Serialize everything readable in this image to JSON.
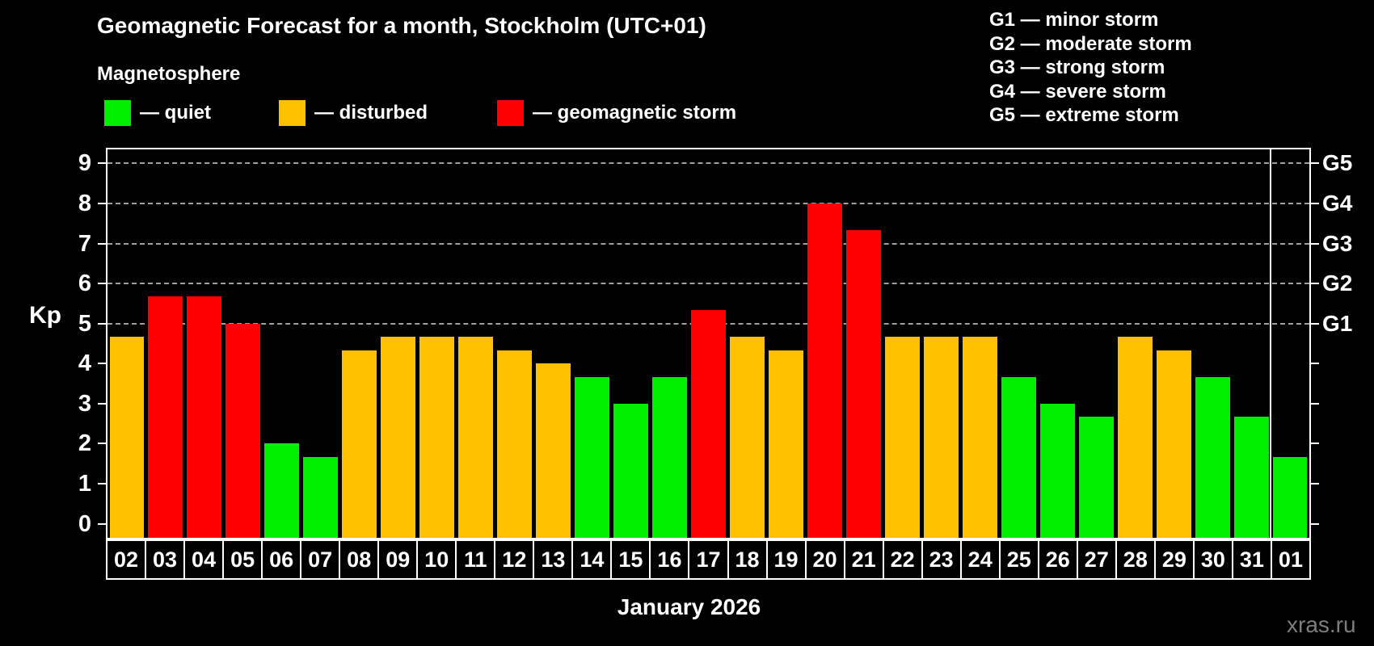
{
  "title": "Geomagnetic Forecast for a month, Stockholm (UTC+01)",
  "subtitle": "Magnetosphere",
  "legend": [
    {
      "key": "quiet",
      "label": "— quiet",
      "color": "#00ee00"
    },
    {
      "key": "disturbed",
      "label": "— disturbed",
      "color": "#ffc000"
    },
    {
      "key": "storm",
      "label": "— geomagnetic storm",
      "color": "#ff0000"
    }
  ],
  "g_legend": [
    "G1 — minor storm",
    "G2 — moderate storm",
    "G3 — strong storm",
    "G4 — severe storm",
    "G5 — extreme storm"
  ],
  "watermark": "xras.ru",
  "chart_data": {
    "type": "bar",
    "title": "Geomagnetic Forecast for a month, Stockholm (UTC+01)",
    "xlabel": "January 2026",
    "ylabel": "Kp",
    "ylim": [
      0,
      9
    ],
    "grid": "dashed horizontal lines at Kp 5-9 only",
    "legend_position": "top",
    "categories": [
      "02",
      "03",
      "04",
      "05",
      "06",
      "07",
      "08",
      "09",
      "10",
      "11",
      "12",
      "13",
      "14",
      "15",
      "16",
      "17",
      "18",
      "19",
      "20",
      "21",
      "22",
      "23",
      "24",
      "25",
      "26",
      "27",
      "28",
      "29",
      "30",
      "31",
      "01"
    ],
    "values": [
      4.67,
      5.67,
      5.67,
      5.0,
      2.0,
      1.67,
      4.33,
      4.67,
      4.67,
      4.67,
      4.33,
      4.0,
      3.67,
      3.0,
      3.67,
      5.33,
      4.67,
      4.33,
      8.0,
      7.33,
      4.67,
      4.67,
      4.67,
      3.67,
      3.0,
      2.67,
      4.67,
      4.33,
      3.67,
      2.67,
      1.67
    ],
    "statuses": [
      "disturbed",
      "storm",
      "storm",
      "storm",
      "quiet",
      "quiet",
      "disturbed",
      "disturbed",
      "disturbed",
      "disturbed",
      "disturbed",
      "disturbed",
      "quiet",
      "quiet",
      "quiet",
      "storm",
      "disturbed",
      "disturbed",
      "storm",
      "storm",
      "disturbed",
      "disturbed",
      "disturbed",
      "quiet",
      "quiet",
      "quiet",
      "disturbed",
      "disturbed",
      "quiet",
      "quiet",
      "quiet"
    ],
    "y_ticks": [
      0,
      1,
      2,
      3,
      4,
      5,
      6,
      7,
      8,
      9
    ],
    "gridlines_at": [
      5,
      6,
      7,
      8,
      9
    ],
    "right_axis": [
      {
        "kp": 9,
        "label": "G5"
      },
      {
        "kp": 8,
        "label": "G4"
      },
      {
        "kp": 7,
        "label": "G3"
      },
      {
        "kp": 6,
        "label": "G2"
      },
      {
        "kp": 5,
        "label": "G1"
      }
    ],
    "month_separator_before_category": "01",
    "separator_at_slot": 30
  }
}
